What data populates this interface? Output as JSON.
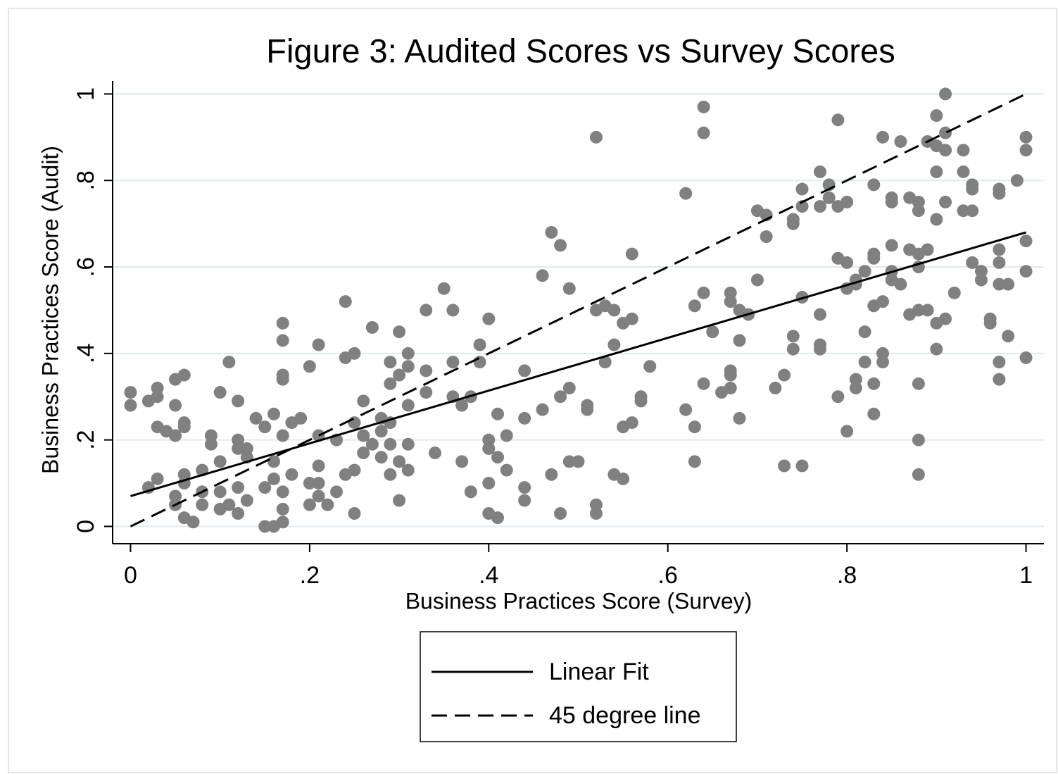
{
  "chart_data": {
    "type": "scatter",
    "title": "Figure 3: Audited Scores vs Survey Scores",
    "xlabel": "Business Practices Score (Survey)",
    "ylabel": "Business Practices Score (Audit)",
    "xlim": [
      -0.02,
      1.02
    ],
    "ylim": [
      -0.04,
      1.03
    ],
    "xticks": [
      0,
      {
        "value": 0.2,
        "label": ".2"
      },
      {
        "value": 0.4,
        "label": ".4"
      },
      {
        "value": 0.6,
        "label": ".6"
      },
      {
        "value": 0.8,
        "label": ".8"
      },
      1
    ],
    "yticks": [
      0,
      {
        "value": 0.2,
        "label": ".2"
      },
      {
        "value": 0.4,
        "label": ".4"
      },
      {
        "value": 0.6,
        "label": ".6"
      },
      {
        "value": 0.8,
        "label": ".8"
      },
      1
    ],
    "grid": true,
    "legend_position": "bottom",
    "series": [
      {
        "type": "scatter",
        "color": "#808080",
        "x": [
          0,
          0,
          0.02,
          0.03,
          0.03,
          0.03,
          0.04,
          0.05,
          0.05,
          0.06,
          0.05,
          0.06,
          0.06,
          0.02,
          0.03,
          0.05,
          0.05,
          0.06,
          0.06,
          0.06,
          0.07,
          0.08,
          0.08,
          0.08,
          0.09,
          0.09,
          0.1,
          0.1,
          0.1,
          0.1,
          0.11,
          0.11,
          0.12,
          0.12,
          0.12,
          0.12,
          0.12,
          0.13,
          0.13,
          0.13,
          0.14,
          0.15,
          0.15,
          0.15,
          0.16,
          0.16,
          0.16,
          0.16,
          0.17,
          0.17,
          0.17,
          0.17,
          0.17,
          0.17,
          0.17,
          0.17,
          0.18,
          0.18,
          0.19,
          0.2,
          0.2,
          0.2,
          0.21,
          0.21,
          0.21,
          0.21,
          0.21,
          0.22,
          0.23,
          0.23,
          0.24,
          0.24,
          0.24,
          0.25,
          0.25,
          0.25,
          0.25,
          0.26,
          0.26,
          0.26,
          0.27,
          0.27,
          0.28,
          0.28,
          0.28,
          0.29,
          0.29,
          0.29,
          0.29,
          0.29,
          0.3,
          0.3,
          0.3,
          0.3,
          0.31,
          0.31,
          0.31,
          0.31,
          0.31,
          0.33,
          0.33,
          0.33,
          0.34,
          0.35,
          0.36,
          0.36,
          0.36,
          0.37,
          0.37,
          0.38,
          0.38,
          0.39,
          0.39,
          0.4,
          0.4,
          0.4,
          0.4,
          0.4,
          0.41,
          0.41,
          0.41,
          0.42,
          0.42,
          0.44,
          0.44,
          0.44,
          0.44,
          0.46,
          0.46,
          0.47,
          0.47,
          0.48,
          0.48,
          0.48,
          0.49,
          0.49,
          0.49,
          0.5,
          0.51,
          0.51,
          0.52,
          0.52,
          0.52,
          0.52,
          0.53,
          0.53,
          0.54,
          0.54,
          0.54,
          0.55,
          0.55,
          0.55,
          0.56,
          0.56,
          0.56,
          0.57,
          0.57,
          0.58,
          0.62,
          0.62,
          0.63,
          0.63,
          0.63,
          0.64,
          0.64,
          0.64,
          0.64,
          0.65,
          0.66,
          0.67,
          0.67,
          0.67,
          0.67,
          0.67,
          0.68,
          0.68,
          0.68,
          0.69,
          0.7,
          0.7,
          0.71,
          0.71,
          0.72,
          0.73,
          0.73,
          0.74,
          0.74,
          0.74,
          0.74,
          0.75,
          0.75,
          0.75,
          0.75,
          0.77,
          0.77,
          0.77,
          0.77,
          0.77,
          0.78,
          0.78,
          0.79,
          0.79,
          0.79,
          0.79,
          0.8,
          0.8,
          0.8,
          0.81,
          0.81,
          0.81,
          0.8,
          0.81,
          0.82,
          0.82,
          0.82,
          0.83,
          0.83,
          0.83,
          0.83,
          0.83,
          0.83,
          0.84,
          0.84,
          0.84,
          0.84,
          0.85,
          0.85,
          0.85,
          0.85,
          0.85,
          0.86,
          0.86,
          0.87,
          0.87,
          0.87,
          0.88,
          0.88,
          0.88,
          0.88,
          0.88,
          0.88,
          0.88,
          0.88,
          0.89,
          0.89,
          0.89,
          0.9,
          0.9,
          0.9,
          0.9,
          0.9,
          0.9,
          0.91,
          0.91,
          0.91,
          0.91,
          0.91,
          0.92,
          0.93,
          0.93,
          0.93,
          0.94,
          0.94,
          0.94,
          0.94,
          0.95,
          0.95,
          0.96,
          0.96,
          0.97,
          0.97,
          0.97,
          0.97,
          0.97,
          0.97,
          0.97,
          0.98,
          0.98,
          0.99,
          1.0,
          1.0,
          1.0,
          1.0,
          1.0
        ],
        "values": [
          0.31,
          0.28,
          0.29,
          0.32,
          0.3,
          0.23,
          0.22,
          0.34,
          0.21,
          0.35,
          0.28,
          0.24,
          0.23,
          0.09,
          0.11,
          0.05,
          0.07,
          0.02,
          0.12,
          0.1,
          0.01,
          0.13,
          0.08,
          0.05,
          0.19,
          0.21,
          0.08,
          0.04,
          0.31,
          0.15,
          0.05,
          0.38,
          0.2,
          0.18,
          0.29,
          0.09,
          0.03,
          0.18,
          0.16,
          0.06,
          0.25,
          0.23,
          0.09,
          0.0,
          0.15,
          0.11,
          0.0,
          0.26,
          0.43,
          0.47,
          0.35,
          0.34,
          0.21,
          0.01,
          0.08,
          0.04,
          0.12,
          0.24,
          0.25,
          0.37,
          0.1,
          0.05,
          0.21,
          0.14,
          0.42,
          0.1,
          0.07,
          0.05,
          0.2,
          0.08,
          0.39,
          0.12,
          0.52,
          0.4,
          0.24,
          0.13,
          0.03,
          0.17,
          0.29,
          0.21,
          0.46,
          0.19,
          0.16,
          0.22,
          0.25,
          0.33,
          0.38,
          0.12,
          0.19,
          0.24,
          0.06,
          0.15,
          0.35,
          0.45,
          0.4,
          0.28,
          0.37,
          0.13,
          0.19,
          0.5,
          0.36,
          0.31,
          0.17,
          0.55,
          0.3,
          0.38,
          0.5,
          0.28,
          0.15,
          0.3,
          0.08,
          0.38,
          0.42,
          0.1,
          0.03,
          0.48,
          0.2,
          0.18,
          0.02,
          0.26,
          0.16,
          0.21,
          0.13,
          0.36,
          0.06,
          0.25,
          0.09,
          0.58,
          0.27,
          0.12,
          0.68,
          0.03,
          0.3,
          0.65,
          0.15,
          0.55,
          0.32,
          0.15,
          0.28,
          0.27,
          0.9,
          0.05,
          0.03,
          0.5,
          0.51,
          0.38,
          0.42,
          0.5,
          0.12,
          0.47,
          0.11,
          0.23,
          0.48,
          0.63,
          0.24,
          0.3,
          0.29,
          0.37,
          0.77,
          0.27,
          0.15,
          0.51,
          0.23,
          0.33,
          0.91,
          0.97,
          0.54,
          0.45,
          0.31,
          0.54,
          0.52,
          0.36,
          0.32,
          0.35,
          0.25,
          0.5,
          0.43,
          0.49,
          0.73,
          0.57,
          0.67,
          0.72,
          0.32,
          0.14,
          0.35,
          0.44,
          0.41,
          0.71,
          0.7,
          0.14,
          0.74,
          0.53,
          0.78,
          0.82,
          0.49,
          0.41,
          0.42,
          0.74,
          0.79,
          0.76,
          0.74,
          0.94,
          0.62,
          0.3,
          0.55,
          0.22,
          0.75,
          0.57,
          0.34,
          0.32,
          0.61,
          0.56,
          0.59,
          0.45,
          0.38,
          0.51,
          0.33,
          0.63,
          0.26,
          0.79,
          0.62,
          0.38,
          0.4,
          0.9,
          0.52,
          0.57,
          0.65,
          0.76,
          0.75,
          0.59,
          0.89,
          0.56,
          0.64,
          0.49,
          0.76,
          0.63,
          0.33,
          0.2,
          0.12,
          0.6,
          0.75,
          0.5,
          0.73,
          0.64,
          0.5,
          0.89,
          0.82,
          0.88,
          0.95,
          0.71,
          0.41,
          0.47,
          1.0,
          0.75,
          0.87,
          0.91,
          0.48,
          0.54,
          0.87,
          0.82,
          0.73,
          0.79,
          0.78,
          0.73,
          0.61,
          0.57,
          0.59,
          0.48,
          0.47,
          0.78,
          0.77,
          0.61,
          0.64,
          0.56,
          0.38,
          0.34,
          0.56,
          0.44,
          0.8,
          0.9,
          0.87,
          0.66,
          0.59,
          0.39
        ]
      },
      {
        "type": "line",
        "name": "Linear Fit",
        "color": "#000000",
        "style": "solid",
        "x": [
          0,
          1
        ],
        "values": [
          0.07,
          0.68
        ]
      },
      {
        "type": "line",
        "name": "45 degree line",
        "color": "#000000",
        "style": "dashed",
        "x": [
          0,
          1
        ],
        "values": [
          0,
          1
        ]
      }
    ]
  }
}
